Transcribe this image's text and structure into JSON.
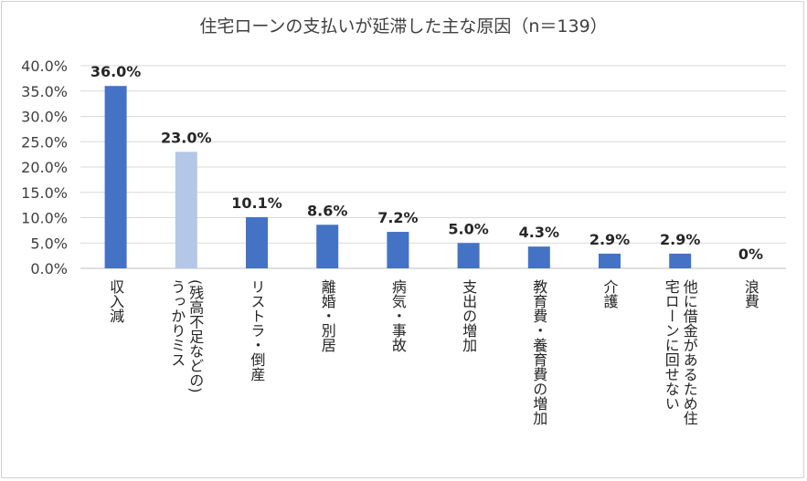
{
  "chart_data": {
    "type": "bar",
    "title": "住宅ローンの支払いが延滞した主な原因（n＝139）",
    "categories": [
      [
        "収入減"
      ],
      [
        "(残高不足などの)",
        "うっかりミス"
      ],
      [
        "リストラ・倒産"
      ],
      [
        "離婚・別居"
      ],
      [
        "病気・事故"
      ],
      [
        "支出の増加"
      ],
      [
        "教育費・養育費の増加"
      ],
      [
        "介護"
      ],
      [
        "他に借金があるため住",
        "宅ローンに回せない"
      ],
      [
        "浪費"
      ]
    ],
    "values": [
      36.0,
      23.0,
      10.1,
      8.6,
      7.2,
      5.0,
      4.3,
      2.9,
      2.9,
      0
    ],
    "value_labels": [
      "36.0%",
      "23.0%",
      "10.1%",
      "8.6%",
      "7.2%",
      "5.0%",
      "4.3%",
      "2.9%",
      "2.9%",
      "0%"
    ],
    "bar_colors": [
      "#4472c4",
      "#b4c7e7",
      "#4472c4",
      "#4472c4",
      "#4472c4",
      "#4472c4",
      "#4472c4",
      "#4472c4",
      "#4472c4",
      "#4472c4"
    ],
    "y_ticks": [
      "0.0%",
      "5.0%",
      "10.0%",
      "15.0%",
      "20.0%",
      "25.0%",
      "30.0%",
      "35.0%",
      "40.0%"
    ],
    "ylim": [
      0,
      40
    ],
    "ytick_step": 5,
    "grid": true,
    "gridline_color": "#d9d9d9",
    "xlabel": "",
    "ylabel": ""
  }
}
